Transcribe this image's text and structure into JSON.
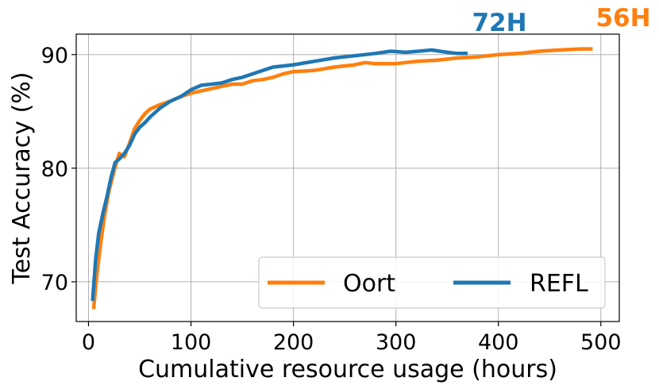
{
  "chart_data": {
    "type": "line",
    "xlabel": "Cumulative resource usage (hours)",
    "ylabel": "Test Accuracy (%)",
    "xlim": [
      -12,
      518
    ],
    "ylim": [
      66.5,
      91.8
    ],
    "xticks": [
      0,
      100,
      200,
      300,
      400,
      500
    ],
    "yticks": [
      70,
      80,
      90
    ],
    "grid": true,
    "legend_position": "lower-right",
    "series": [
      {
        "name": "Oort",
        "color": "#ff7f0e",
        "x": [
          5,
          8,
          12,
          16,
          20,
          25,
          30,
          35,
          40,
          45,
          50,
          55,
          60,
          70,
          80,
          90,
          100,
          110,
          120,
          130,
          140,
          150,
          160,
          170,
          180,
          190,
          200,
          220,
          240,
          260,
          270,
          280,
          300,
          320,
          340,
          360,
          380,
          400,
          420,
          440,
          460,
          480,
          492
        ],
        "y": [
          67.6,
          70.5,
          73.5,
          76.0,
          78.0,
          79.8,
          81.3,
          81.0,
          82.2,
          83.5,
          84.2,
          84.8,
          85.2,
          85.6,
          85.9,
          86.3,
          86.6,
          86.8,
          87.0,
          87.2,
          87.4,
          87.4,
          87.7,
          87.8,
          88.0,
          88.3,
          88.5,
          88.6,
          88.9,
          89.1,
          89.3,
          89.2,
          89.2,
          89.4,
          89.5,
          89.7,
          89.8,
          90.0,
          90.1,
          90.3,
          90.4,
          90.5,
          90.5
        ]
      },
      {
        "name": "REFL",
        "color": "#1f77b4",
        "x": [
          4,
          7,
          10,
          14,
          18,
          22,
          26,
          30,
          35,
          40,
          45,
          50,
          55,
          60,
          70,
          80,
          90,
          100,
          110,
          120,
          130,
          140,
          150,
          160,
          170,
          180,
          190,
          200,
          220,
          240,
          260,
          280,
          295,
          310,
          335,
          350,
          360,
          370
        ],
        "y": [
          68.3,
          72.0,
          74.3,
          76.0,
          77.5,
          79.2,
          80.5,
          80.8,
          81.3,
          82.0,
          83.0,
          83.6,
          84.0,
          84.5,
          85.3,
          85.9,
          86.3,
          86.9,
          87.3,
          87.4,
          87.5,
          87.8,
          88.0,
          88.3,
          88.6,
          88.9,
          89.0,
          89.1,
          89.4,
          89.7,
          89.9,
          90.1,
          90.3,
          90.2,
          90.4,
          90.2,
          90.1,
          90.1
        ]
      }
    ],
    "annotations": [
      {
        "text": "72H",
        "color": "#1f77b4"
      },
      {
        "text": "56H",
        "color": "#ff7f0e"
      }
    ]
  }
}
